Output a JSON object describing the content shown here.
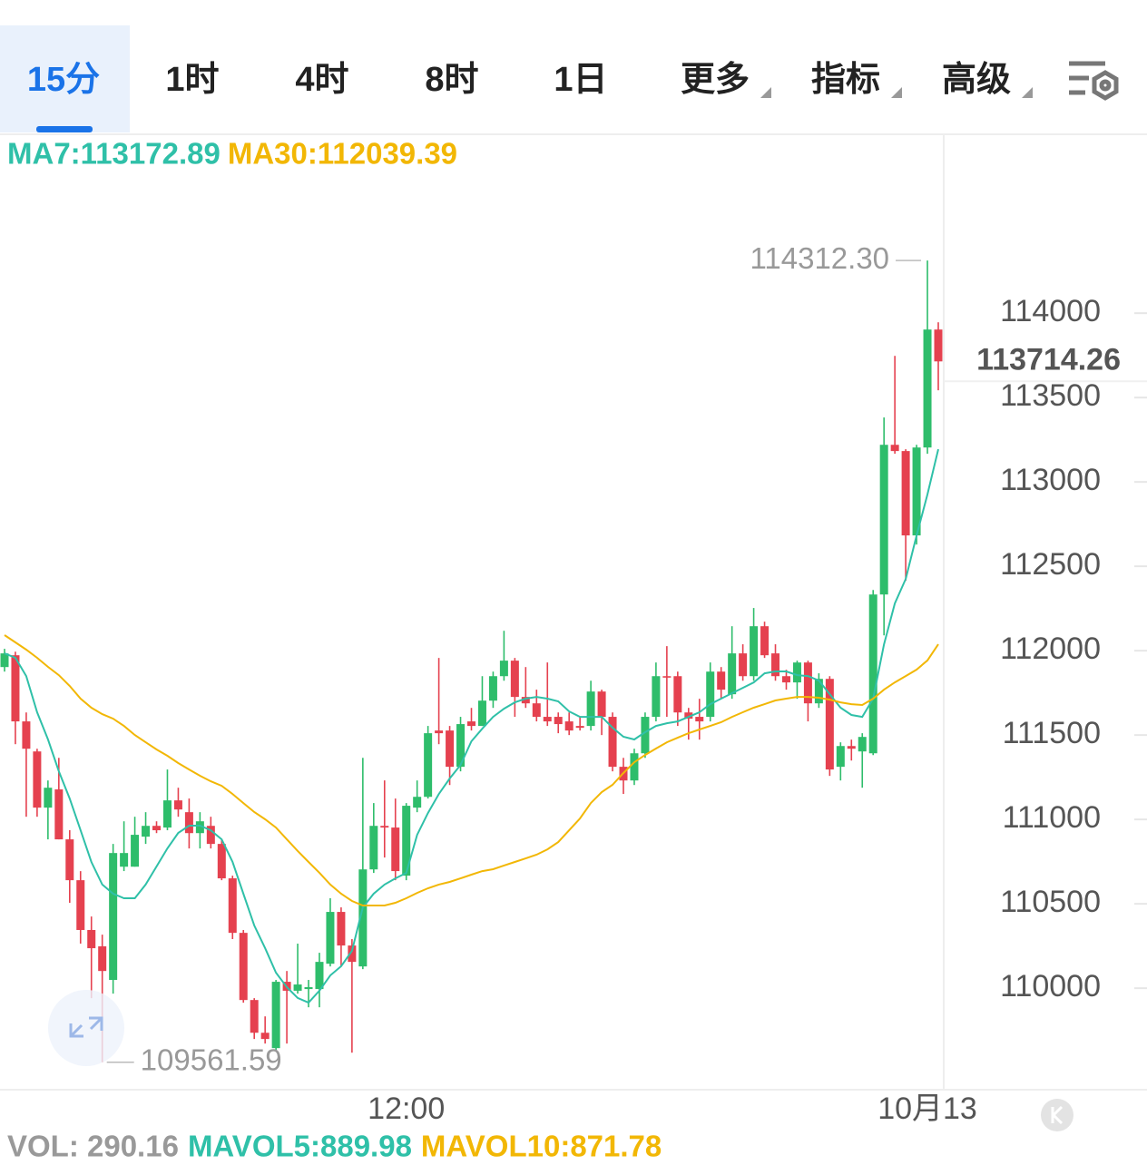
{
  "tabs": [
    "15分",
    "1时",
    "4时",
    "8时",
    "1日",
    "更多",
    "指标",
    "高级"
  ],
  "active_tab": 0,
  "chart_data": {
    "type": "candlestick",
    "categories": [
      null,
      null,
      null,
      null,
      null,
      null,
      null,
      null,
      null,
      null,
      null,
      null,
      null,
      null,
      null,
      null,
      null,
      null,
      null,
      null,
      null,
      null,
      null,
      null,
      null,
      null,
      null,
      null,
      null,
      null,
      null,
      null,
      null,
      null,
      null,
      null,
      null,
      "12:00",
      null,
      null,
      null,
      null,
      null,
      null,
      null,
      null,
      null,
      null,
      null,
      null,
      null,
      null,
      null,
      null,
      null,
      null,
      null,
      null,
      null,
      null,
      null,
      null,
      null,
      null,
      null,
      null,
      null,
      null,
      null,
      null,
      null,
      null,
      null,
      null,
      null,
      null,
      null,
      null,
      null,
      null,
      null,
      null,
      null,
      null,
      null,
      "10月13",
      null
    ],
    "open": [
      111903,
      111973,
      111581,
      111403,
      111070,
      111178,
      110882,
      110640,
      110345,
      110248,
      110049,
      110720,
      110720,
      110898,
      110962,
      110952,
      111113,
      111043,
      110919,
      110962,
      110855,
      110651,
      110328,
      109930,
      109736,
      109645,
      110038,
      109985,
      109995,
      109995,
      110145,
      110452,
      110253,
      110129,
      110704,
      110962,
      110952,
      110667,
      111070,
      111134,
      111527,
      111527,
      111312,
      111581,
      111554,
      111704,
      111849,
      111941,
      111726,
      111688,
      111608,
      111608,
      111581,
      111554,
      111554,
      111758,
      111608,
      111312,
      111231,
      111392,
      111608,
      111849,
      111849,
      111634,
      111608,
      111608,
      111876,
      111742,
      111984,
      111849,
      112145,
      111984,
      111849,
      111812,
      111930,
      111688,
      111833,
      111312,
      111435,
      111403,
      111392,
      112333,
      113220,
      113183,
      112683,
      113204,
      113903
    ],
    "high": [
      112011,
      111994,
      111634,
      111419,
      111231,
      111365,
      110936,
      110694,
      110425,
      110317,
      110855,
      110989,
      111016,
      111043,
      110989,
      111296,
      111188,
      111124,
      111043,
      111016,
      110882,
      110667,
      110345,
      109941,
      109833,
      110049,
      110102,
      110264,
      110049,
      110210,
      110533,
      110479,
      110291,
      111365,
      111097,
      111231,
      111124,
      111097,
      111231,
      111554,
      111957,
      111554,
      111608,
      111661,
      111849,
      111876,
      112118,
      111957,
      111903,
      111769,
      111930,
      111634,
      111634,
      111608,
      111822,
      111769,
      111634,
      111365,
      111419,
      111634,
      111930,
      112027,
      111876,
      111661,
      111715,
      111930,
      111903,
      112145,
      112038,
      112253,
      112172,
      112038,
      111887,
      111941,
      111941,
      111866,
      111849,
      111457,
      111473,
      111511,
      112360,
      113382,
      113747,
      113194,
      113220,
      114312.3,
      113946
    ],
    "low": [
      111876,
      111446,
      111016,
      111016,
      110882,
      110882,
      110506,
      110264,
      109941,
      109561.59,
      109968,
      110694,
      110720,
      110855,
      110919,
      110936,
      111016,
      110828,
      110828,
      110828,
      110640,
      110291,
      109914,
      109699,
      109672,
      109629,
      109672,
      109968,
      109887,
      109887,
      110129,
      110129,
      109618,
      110113,
      110683,
      110774,
      110640,
      110640,
      111043,
      111124,
      111446,
      111204,
      111285,
      111527,
      111554,
      111661,
      111822,
      111608,
      111661,
      111581,
      111554,
      111511,
      111500,
      111527,
      111527,
      111500,
      111285,
      111151,
      111204,
      111365,
      111581,
      111608,
      111554,
      111473,
      111473,
      111581,
      111715,
      111715,
      111822,
      111822,
      111957,
      111822,
      111769,
      111715,
      111581,
      111661,
      111258,
      111231,
      111349,
      111188,
      111381,
      112091,
      113167,
      112414,
      112629,
      113167,
      113543
    ],
    "close": [
      111984,
      111581,
      111419,
      111070,
      111188,
      110882,
      110640,
      110345,
      110237,
      110102,
      110801,
      110801,
      110909,
      110962,
      110936,
      111113,
      111059,
      110919,
      110989,
      110855,
      110651,
      110328,
      109930,
      109736,
      109699,
      110038,
      109985,
      110022,
      110006,
      110156,
      110452,
      110253,
      110156,
      110704,
      110962,
      110952,
      110694,
      111081,
      111134,
      111511,
      111511,
      111312,
      111565,
      111554,
      111704,
      111849,
      111941,
      111726,
      111688,
      111608,
      111581,
      111565,
      111527,
      111543,
      111758,
      111608,
      111312,
      111231,
      111392,
      111608,
      111849,
      111844,
      111634,
      111597,
      111581,
      111876,
      111769,
      111984,
      111849,
      112145,
      111973,
      111849,
      111812,
      111930,
      111688,
      111833,
      111296,
      111435,
      111419,
      111489,
      112333,
      113220,
      113183,
      112683,
      113204,
      113903,
      113714.26
    ],
    "up_color": "#2ebd6b",
    "down_color": "#e5414f",
    "lines": [
      {
        "label": "MA7:113172.89",
        "color": "#2fc0a8",
        "values": [
          111984,
          111958,
          111850,
          111635,
          111474,
          111286,
          111124,
          110936,
          110748,
          110614,
          110560,
          110533,
          110533,
          110614,
          110721,
          110829,
          110920,
          110963,
          110963,
          110936,
          110882,
          110748,
          110560,
          110372,
          110237,
          110092,
          110006,
          109942,
          109915,
          109985,
          110076,
          110130,
          110221,
          110479,
          110560,
          110614,
          110651,
          110683,
          110909,
          111038,
          111151,
          111243,
          111323,
          111463,
          111538,
          111608,
          111656,
          111694,
          111716,
          111726,
          111716,
          111700,
          111640,
          111608,
          111608,
          111608,
          111544,
          111490,
          111474,
          111517,
          111554,
          111570,
          111581,
          111608,
          111635,
          111683,
          111716,
          111748,
          111780,
          111812,
          111866,
          111877,
          111877,
          111855,
          111850,
          111823,
          111743,
          111662,
          111619,
          111608,
          111716,
          112038,
          112280,
          112425,
          112683,
          112925,
          113194
        ]
      },
      {
        "label": "MA30:112039.39",
        "color": "#f2b705",
        "values": [
          112092,
          112049,
          112006,
          111958,
          111904,
          111855,
          111791,
          111716,
          111662,
          111624,
          111597,
          111554,
          111500,
          111457,
          111415,
          111377,
          111334,
          111296,
          111259,
          111226,
          111199,
          111151,
          111097,
          111044,
          111001,
          110952,
          110882,
          110813,
          110748,
          110684,
          110614,
          110560,
          110517,
          110490,
          110490,
          110490,
          110506,
          110533,
          110565,
          110592,
          110614,
          110630,
          110651,
          110673,
          110694,
          110705,
          110727,
          110748,
          110769,
          110791,
          110823,
          110866,
          110936,
          111006,
          111097,
          111162,
          111205,
          111275,
          111339,
          111382,
          111420,
          111457,
          111484,
          111511,
          111533,
          111554,
          111576,
          111608,
          111635,
          111662,
          111683,
          111705,
          111716,
          111726,
          111726,
          111721,
          111710,
          111694,
          111683,
          111678,
          111716,
          111769,
          111812,
          111850,
          111888,
          111942,
          112038
        ]
      }
    ],
    "ylim": [
      109404,
      115060
    ],
    "yticks": [
      110000,
      110500,
      111000,
      111500,
      112000,
      112500,
      113000,
      113500,
      114000
    ],
    "max_label": "114312.30",
    "min_label": "109561.59",
    "last_label": "113714.26",
    "last_color": "#e5414f"
  },
  "volume_legend": [
    {
      "text": "VOL: 290.16",
      "color": "#999999"
    },
    {
      "text": "MAVOL5:889.98",
      "color": "#2fc0a8"
    },
    {
      "text": "MAVOL10:871.78",
      "color": "#f2b705"
    }
  ]
}
